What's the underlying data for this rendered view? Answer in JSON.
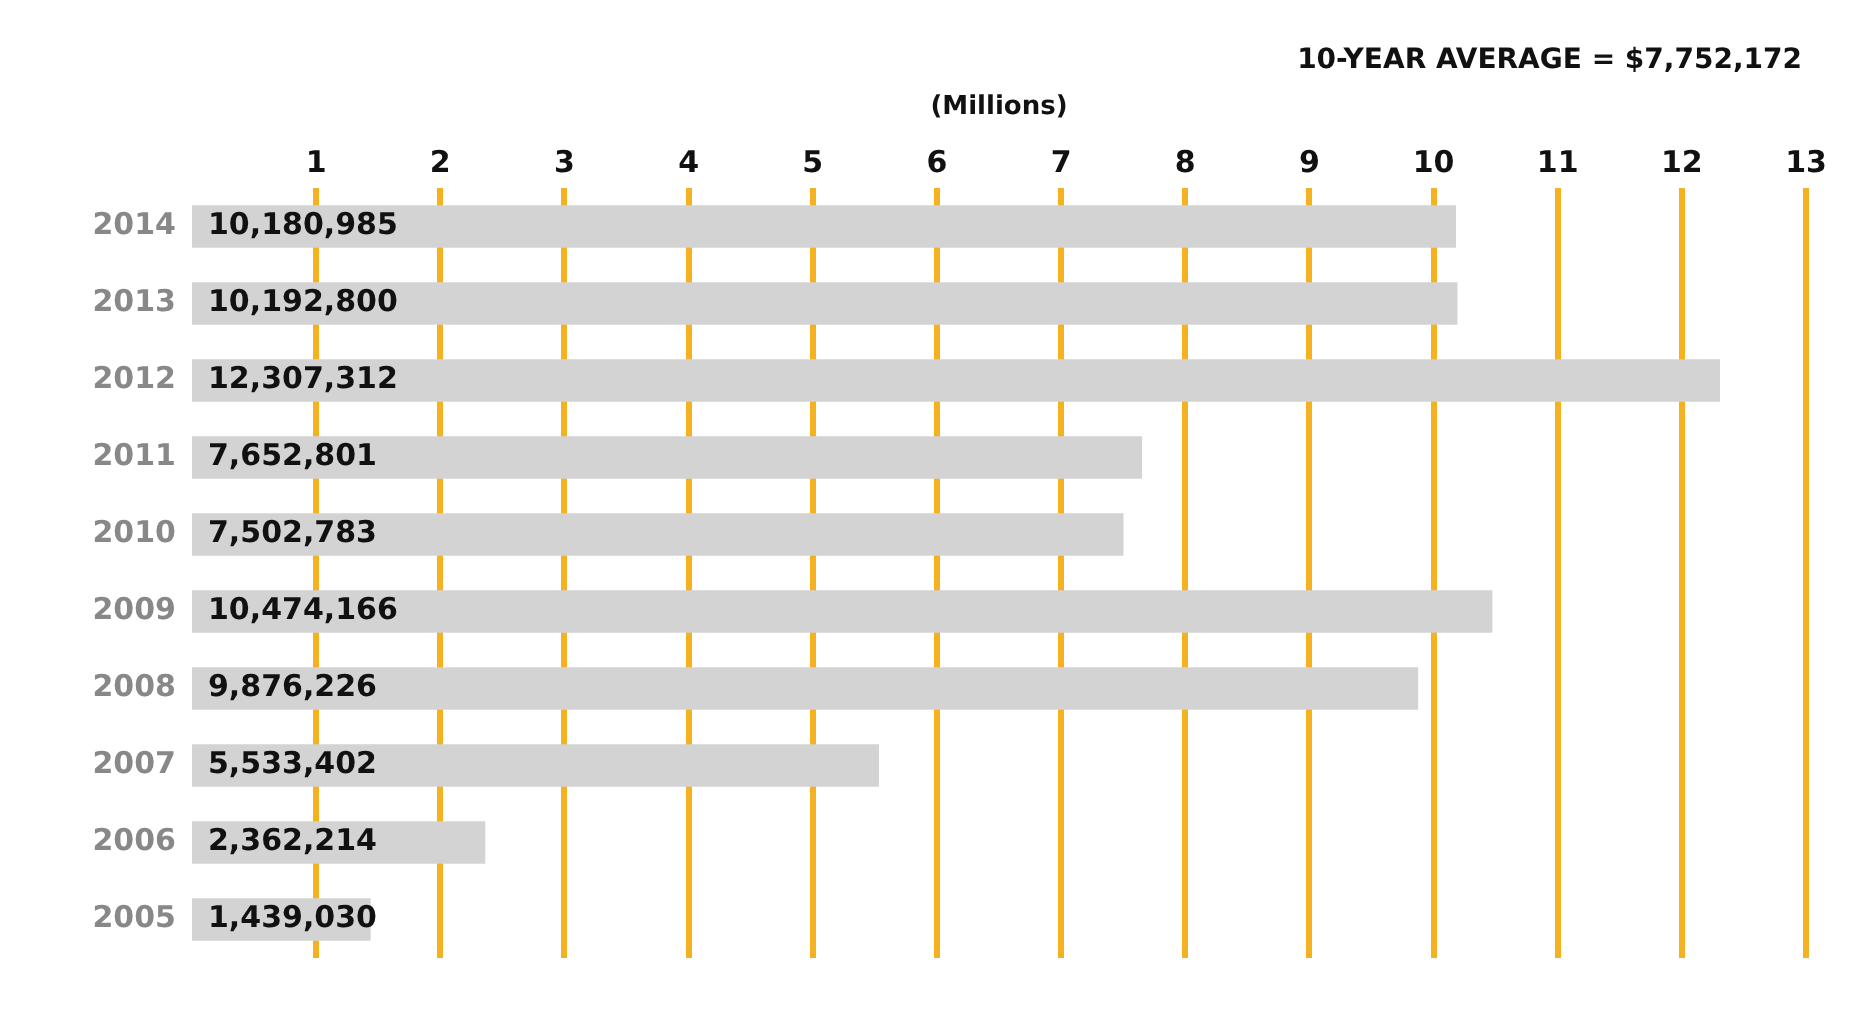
{
  "chart_data": {
    "type": "bar",
    "orientation": "horizontal",
    "xlabel": "(Millions)",
    "annotations": [
      "10-YEAR AVERAGE = $7,752,172",
      {
        "text": "10,180,985",
        "y": "2014"
      },
      {
        "text": "10,192,800",
        "y": "2013"
      },
      {
        "text": "12,307,312",
        "y": "2012"
      },
      {
        "text": "7,652,801",
        "y": "2011"
      },
      {
        "text": "7,502,783",
        "y": "2010"
      },
      {
        "text": "10,474,166",
        "y": "2009"
      },
      {
        "text": "9,876,226",
        "y": "2008"
      },
      {
        "text": "5,533,402",
        "y": "2007"
      },
      {
        "text": "2,362,214",
        "y": "2006"
      },
      {
        "text": "1,439,030",
        "y": "2005"
      }
    ],
    "categories": [
      "2014",
      "2013",
      "2012",
      "2011",
      "2010",
      "2009",
      "2008",
      "2007",
      "2006",
      "2005"
    ],
    "values": [
      10.180985,
      10.1928,
      12.307312,
      7.652801,
      7.502783,
      10.474166,
      9.876226,
      5.533402,
      2.362214,
      1.43903
    ],
    "color": "#d3d3d3",
    "xlim": [
      0,
      13
    ],
    "xticks": [
      1,
      2,
      3,
      4,
      5,
      6,
      7,
      8,
      9,
      10,
      11,
      12,
      13
    ],
    "grid": "x",
    "legend": false
  }
}
